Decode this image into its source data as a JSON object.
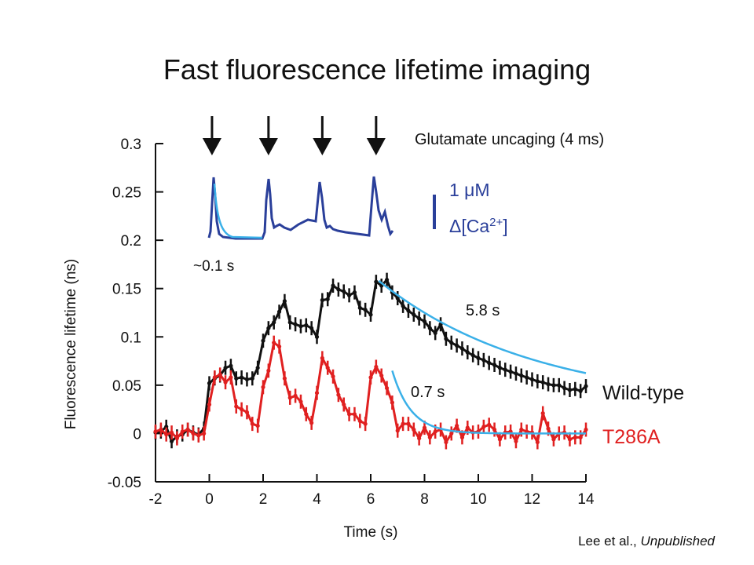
{
  "title": "Fast fluorescence lifetime imaging",
  "credit": {
    "authors": "Lee et al., ",
    "status": "Unpublished"
  },
  "colors": {
    "wild_type": "#111111",
    "t286a": "#e02020",
    "calcium": "#2a3f9a",
    "fit": "#3ab0e8"
  },
  "chart_data": {
    "type": "line",
    "title": "Fast fluorescence lifetime imaging",
    "xlabel": "Time (s)",
    "ylabel": "Fluorescence lifetime (ns)",
    "xlim": [
      -2,
      14
    ],
    "ylim": [
      -0.05,
      0.3
    ],
    "xticks": [
      -2,
      0,
      2,
      4,
      6,
      8,
      10,
      12,
      14
    ],
    "xtick_labels": [
      "-2",
      "0",
      "2",
      "4",
      "6",
      "8",
      "10",
      "12",
      "14"
    ],
    "yticks": [
      -0.05,
      0,
      0.05,
      0.1,
      0.15,
      0.2,
      0.25,
      0.3
    ],
    "ytick_labels": [
      "-0.05",
      "0",
      "0.05",
      "0.1",
      "0.15",
      "0.2",
      "0.25",
      "0.3"
    ],
    "grid": false,
    "stimulus": {
      "label": "Glutamate uncaging (4 ms)",
      "times": [
        0.1,
        2.2,
        4.2,
        6.2
      ]
    },
    "series": [
      {
        "name": "Wild-type",
        "x": [
          -2,
          -1.8,
          -1.6,
          -1.4,
          -1.2,
          -1,
          -0.8,
          -0.6,
          -0.4,
          -0.2,
          0,
          0.2,
          0.4,
          0.6,
          0.8,
          1,
          1.2,
          1.4,
          1.6,
          1.8,
          2,
          2.2,
          2.4,
          2.6,
          2.8,
          3,
          3.2,
          3.4,
          3.6,
          3.8,
          4,
          4.2,
          4.4,
          4.6,
          4.8,
          5,
          5.2,
          5.4,
          5.6,
          5.8,
          6,
          6.2,
          6.4,
          6.6,
          6.8,
          7,
          7.2,
          7.4,
          7.6,
          7.8,
          8,
          8.2,
          8.4,
          8.6,
          8.8,
          9,
          9.2,
          9.4,
          9.6,
          9.8,
          10,
          10.2,
          10.4,
          10.6,
          10.8,
          11,
          11.2,
          11.4,
          11.6,
          11.8,
          12,
          12.2,
          12.4,
          12.6,
          12.8,
          13,
          13.2,
          13.4,
          13.6,
          13.8,
          14
        ],
        "y": [
          0.001,
          0.002,
          0.007,
          -0.008,
          -0.003,
          -0.001,
          0.004,
          0.001,
          -0.001,
          0.005,
          0.052,
          0.057,
          0.06,
          0.068,
          0.07,
          0.057,
          0.058,
          0.056,
          0.057,
          0.068,
          0.096,
          0.109,
          0.115,
          0.126,
          0.137,
          0.115,
          0.113,
          0.111,
          0.112,
          0.109,
          0.1,
          0.138,
          0.139,
          0.153,
          0.149,
          0.147,
          0.143,
          0.146,
          0.13,
          0.128,
          0.123,
          0.157,
          0.153,
          0.159,
          0.146,
          0.14,
          0.132,
          0.127,
          0.123,
          0.119,
          0.116,
          0.109,
          0.104,
          0.113,
          0.098,
          0.094,
          0.091,
          0.088,
          0.084,
          0.081,
          0.078,
          0.076,
          0.073,
          0.071,
          0.068,
          0.066,
          0.064,
          0.062,
          0.06,
          0.058,
          0.056,
          0.054,
          0.053,
          0.051,
          0.05,
          0.05,
          0.047,
          0.045,
          0.046,
          0.044,
          0.049
        ]
      },
      {
        "name": "T286A",
        "x": [
          -2,
          -1.8,
          -1.6,
          -1.4,
          -1.2,
          -1,
          -0.8,
          -0.6,
          -0.4,
          -0.2,
          0,
          0.2,
          0.4,
          0.6,
          0.8,
          1,
          1.2,
          1.4,
          1.6,
          1.8,
          2,
          2.2,
          2.4,
          2.6,
          2.8,
          3,
          3.2,
          3.4,
          3.6,
          3.8,
          4,
          4.2,
          4.4,
          4.6,
          4.8,
          5,
          5.2,
          5.4,
          5.6,
          5.8,
          6,
          6.2,
          6.4,
          6.6,
          6.8,
          7,
          7.2,
          7.4,
          7.6,
          7.8,
          8,
          8.2,
          8.4,
          8.6,
          8.8,
          9,
          9.2,
          9.4,
          9.6,
          9.8,
          10,
          10.2,
          10.4,
          10.6,
          10.8,
          11,
          11.2,
          11.4,
          11.6,
          11.8,
          12,
          12.2,
          12.4,
          12.6,
          12.8,
          13,
          13.2,
          13.4,
          13.6,
          13.8,
          14
        ],
        "y": [
          0.002,
          0.004,
          -0.001,
          0.001,
          -0.005,
          0.002,
          0.004,
          0.0,
          -0.002,
          0.0,
          0.03,
          0.058,
          0.061,
          0.053,
          0.058,
          0.028,
          0.025,
          0.022,
          0.01,
          0.008,
          0.048,
          0.065,
          0.094,
          0.09,
          0.057,
          0.037,
          0.039,
          0.033,
          0.02,
          0.011,
          0.042,
          0.078,
          0.068,
          0.059,
          0.04,
          0.03,
          0.02,
          0.02,
          0.013,
          0.01,
          0.058,
          0.069,
          0.06,
          0.047,
          0.032,
          0.003,
          0.01,
          0.01,
          0.004,
          -0.005,
          0.006,
          -0.004,
          0.002,
          0.004,
          -0.009,
          0.0,
          0.008,
          -0.004,
          0.006,
          0.001,
          0.002,
          0.007,
          0.009,
          0.004,
          -0.006,
          0.001,
          0.002,
          -0.008,
          0.004,
          0.002,
          0.001,
          -0.009,
          0.021,
          0.005,
          -0.006,
          0.0,
          0.001,
          -0.006,
          -0.004,
          -0.004,
          0.004
        ]
      }
    ],
    "fits": [
      {
        "name": "Wild-type decay fit",
        "tau_label": "5.8 s",
        "x0": 6.3,
        "x1": 14,
        "y0": 0.158,
        "a": 0.13,
        "tau": 5.8,
        "offset": 0.028
      },
      {
        "name": "T286A decay fit",
        "tau_label": "0.7 s",
        "x0": 6.8,
        "x1": 14,
        "y0": 0.065,
        "a": 0.065,
        "tau": 0.7,
        "offset": 0.0
      }
    ],
    "inset": {
      "series_label": "Δ[Ca2+]",
      "scalebar_label": "1 μM",
      "decay_label": "~0.1 s"
    },
    "legend": [
      "Wild-type",
      "T286A"
    ]
  }
}
